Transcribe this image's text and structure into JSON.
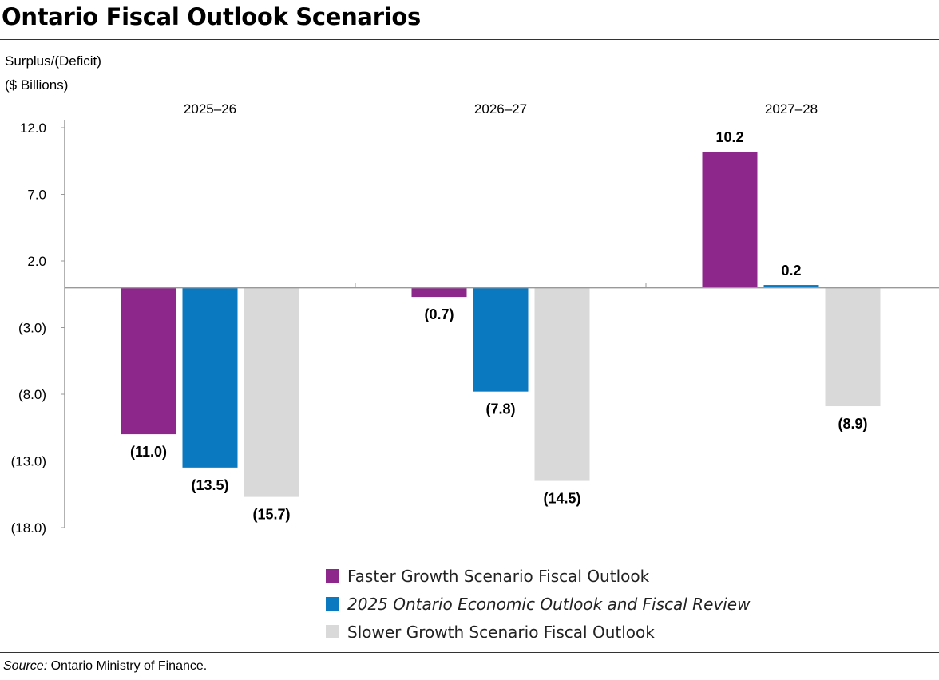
{
  "title": "Ontario Fiscal Outlook Scenarios",
  "source_label": "Source:",
  "source_text": " Ontario Ministry of Finance.",
  "chart_data": {
    "type": "bar",
    "title": "Ontario Fiscal Outlook Scenarios",
    "ylabel_line1": "Surplus/(Deficit)",
    "ylabel_line2": "($ Billions)",
    "categories": [
      "2025–26",
      "2026–27",
      "2027–28"
    ],
    "ylim": [
      -18,
      12
    ],
    "yticks": [
      12,
      7,
      2,
      -3,
      -8,
      -13,
      -18
    ],
    "ytick_labels": [
      "12.0",
      "7.0",
      "2.0",
      "(3.0)",
      "(8.0)",
      "(13.0)",
      "(18.0)"
    ],
    "grid": false,
    "legend_position": "bottom",
    "series": [
      {
        "name": "Faster Growth Scenario Fiscal Outlook",
        "color": "#8E278B",
        "values": [
          -11.0,
          -0.7,
          10.2
        ],
        "labels": [
          "(11.0)",
          "(0.7)",
          "10.2"
        ]
      },
      {
        "name": "2025 Ontario Economic Outlook and Fiscal Review",
        "italic": true,
        "color": "#0A79BF",
        "values": [
          -13.5,
          -7.8,
          0.2
        ],
        "labels": [
          "(13.5)",
          "(7.8)",
          "0.2"
        ]
      },
      {
        "name": "Slower Growth Scenario Fiscal Outlook",
        "color": "#D9D9D9",
        "values": [
          -15.7,
          -14.5,
          -8.9
        ],
        "labels": [
          "(15.7)",
          "(14.5)",
          "(8.9)"
        ]
      }
    ]
  }
}
